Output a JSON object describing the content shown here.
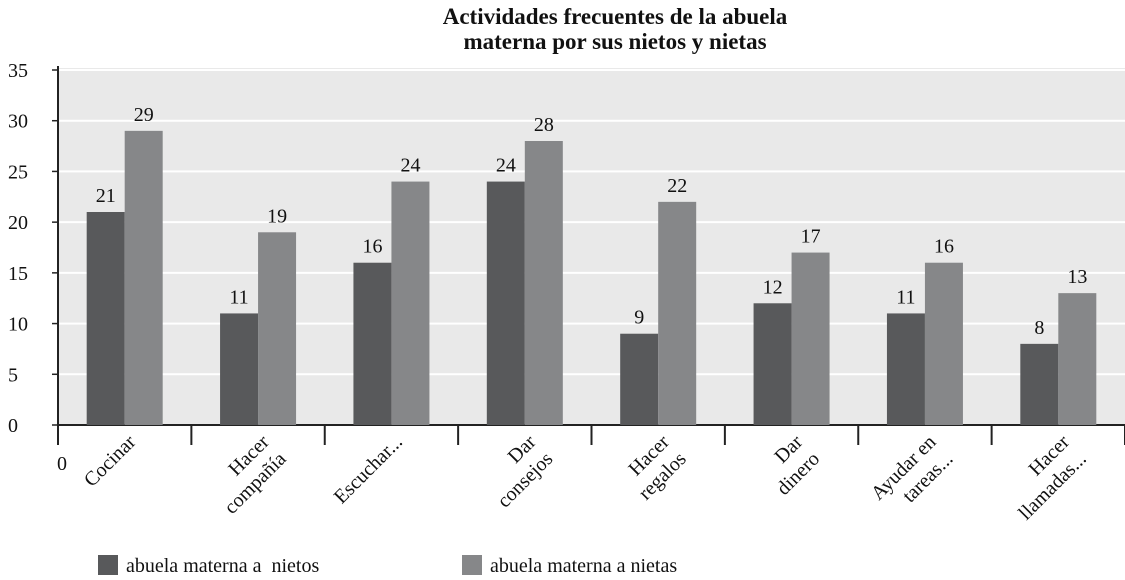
{
  "chart_data": {
    "type": "bar",
    "title": "Actividades frecuentes de la abuela\nmaterna por sus nietos y nietas",
    "categories": [
      "Cocinar",
      "Hacer\ncompañía",
      "Escuchar...",
      "Dar\nconsejos",
      "Hacer\nregalos",
      "Dar\ndinero",
      "Ayudar en\ntareas...",
      "Hacer\nllamadas..."
    ],
    "series": [
      {
        "name": "abuela materna a  nietos",
        "color": "#58595b",
        "values": [
          21,
          11,
          16,
          24,
          9,
          12,
          11,
          8
        ]
      },
      {
        "name": "abuela materna a nietas",
        "color": "#868789",
        "values": [
          29,
          19,
          24,
          28,
          22,
          17,
          16,
          13
        ]
      }
    ],
    "x_axis_origin_label": "0",
    "ylim": [
      0,
      35
    ],
    "yticks": [
      0,
      5,
      10,
      15,
      20,
      25,
      30,
      35
    ],
    "grid": true,
    "legend": "bottom"
  }
}
